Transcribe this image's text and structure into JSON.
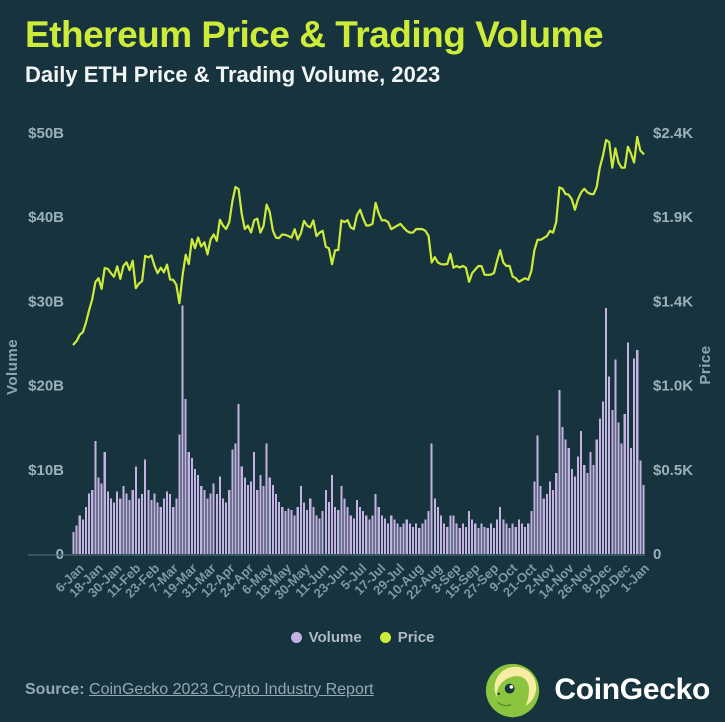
{
  "header": {
    "title": "Ethereum Price & Trading Volume",
    "subtitle": "Daily ETH Price & Trading Volume, 2023"
  },
  "colors": {
    "background": "#17343E",
    "accent": "#CDEC3A",
    "subtitle": "#F2F5F6",
    "price_line": "#CDEC3A",
    "volume_bar": "#C4B2E2",
    "axis_label": "#9CB0BA",
    "tick_label": "#7F98A6",
    "axis_title": "#8FA5B1",
    "legend_text": "#AEBAC0",
    "footer_text": "#93A8B2",
    "baseline": "#4E6A76",
    "logo_green": "#8BC53F",
    "logo_cream": "#F6ECA4",
    "logo_dark": "#17343E"
  },
  "chart_data": {
    "type": "bar",
    "title": "Ethereum Price & Trading Volume",
    "subtitle": "Daily ETH Price & Trading Volume, 2023",
    "grid": false,
    "legend_position": "bottom",
    "date_start": "1-Jan-2023",
    "date_end": "1-Jan-2024",
    "days_total": 365,
    "sampling": "values estimated from chart at ~2-day intervals",
    "x_tick_labels": [
      "6-Jan",
      "18-Jan",
      "30-Jan",
      "11-Feb",
      "23-Feb",
      "7-Mar",
      "19-Mar",
      "31-Mar",
      "12-Apr",
      "24-Apr",
      "6-May",
      "18-May",
      "30-May",
      "11-Jun",
      "23-Jun",
      "5-Jul",
      "17-Jul",
      "29-Jul",
      "10-Aug",
      "22-Aug",
      "3-Sep",
      "15-Sep",
      "27-Sep",
      "9-Oct",
      "21-Oct",
      "2-Nov",
      "14-Nov",
      "26-Nov",
      "8-Dec",
      "20-Dec",
      "1-Jan"
    ],
    "x_tick_days": [
      5,
      17,
      29,
      41,
      53,
      65,
      77,
      89,
      101,
      113,
      125,
      137,
      149,
      161,
      173,
      185,
      197,
      209,
      221,
      233,
      245,
      257,
      269,
      281,
      293,
      305,
      317,
      329,
      341,
      353,
      365
    ],
    "left_axis": {
      "title": "Volume",
      "tick_labels": [
        "$50B",
        "$40B",
        "$30B",
        "$20B",
        "$10B",
        "0"
      ],
      "tick_values_billion": [
        50,
        40,
        30,
        20,
        10,
        0
      ],
      "max_value_billion_usd": 50
    },
    "right_axis": {
      "title": "Price",
      "tick_labels": [
        "$2.4K",
        "$1.9K",
        "$1.4K",
        "$1.0K",
        "$0.5K",
        "0"
      ],
      "tick_values_usd": [
        2400,
        1920,
        1440,
        960,
        480,
        0
      ],
      "max_value_usd": 2400
    },
    "series": [
      {
        "name": "Volume",
        "type": "bar",
        "unit": "billion USD",
        "color": "#C4B2E2",
        "values": [
          2.6,
          3.4,
          4.6,
          4.1,
          5.6,
          7.2,
          7.6,
          13.4,
          9.1,
          8.4,
          12.1,
          7.4,
          6.6,
          6.1,
          7.4,
          6.6,
          8.1,
          7.2,
          6.4,
          7.6,
          10.4,
          6.6,
          7.1,
          11.2,
          7.6,
          6.4,
          7.2,
          6.1,
          5.6,
          6.6,
          7.4,
          7.1,
          5.6,
          6.6,
          14.2,
          29.5,
          18.4,
          12.1,
          11.4,
          10.1,
          9.4,
          8.1,
          7.6,
          6.6,
          7.2,
          8.4,
          7.1,
          9.2,
          6.6,
          6.1,
          7.6,
          12.4,
          13.1,
          17.8,
          10.4,
          9.1,
          8.2,
          8.6,
          12.1,
          7.6,
          9.4,
          8.1,
          13.1,
          9.1,
          8.2,
          7.1,
          6.2,
          5.6,
          5.1,
          5.4,
          5.2,
          4.6,
          5.6,
          8.1,
          6.1,
          5.2,
          6.6,
          5.6,
          4.6,
          4.2,
          5.1,
          7.6,
          6.2,
          9.4,
          5.6,
          5.2,
          8.1,
          6.6,
          5.6,
          4.6,
          4.2,
          6.4,
          5.6,
          5.1,
          4.6,
          4.1,
          4.6,
          7.1,
          5.6,
          4.6,
          4.2,
          3.6,
          4.6,
          4.1,
          3.6,
          3.2,
          3.6,
          4.1,
          3.6,
          3.2,
          3.6,
          3.1,
          3.6,
          4.1,
          5.1,
          13.1,
          6.6,
          5.6,
          4.6,
          3.6,
          3.2,
          4.6,
          4.6,
          3.6,
          3.1,
          3.6,
          3.2,
          5.1,
          4.1,
          3.6,
          3.1,
          3.6,
          3.2,
          3.1,
          3.6,
          3.1,
          4.1,
          5.6,
          4.1,
          3.6,
          3.1,
          3.6,
          3.2,
          4.1,
          3.6,
          3.2,
          3.6,
          5.1,
          8.6,
          14.1,
          8.1,
          6.6,
          7.1,
          8.6,
          7.6,
          9.6,
          19.5,
          15.1,
          13.6,
          12.6,
          10.1,
          9.2,
          11.6,
          14.6,
          10.6,
          9.6,
          12.1,
          10.6,
          13.6,
          16.1,
          18.1,
          29.2,
          21.1,
          17.1,
          23.1,
          15.6,
          13.1,
          16.6,
          25.1,
          12.6,
          23.2,
          24.2,
          11.1,
          8.2
        ]
      },
      {
        "name": "Price",
        "type": "line",
        "unit": "USD",
        "color": "#CDEC3A",
        "values": [
          1195,
          1215,
          1250,
          1265,
          1320,
          1390,
          1452,
          1550,
          1572,
          1512,
          1630,
          1625,
          1601,
          1581,
          1640,
          1568,
          1642,
          1663,
          1618,
          1672,
          1515,
          1542,
          1556,
          1700,
          1691,
          1702,
          1643,
          1601,
          1632,
          1606,
          1650,
          1565,
          1563,
          1535,
          1430,
          1590,
          1706,
          1653,
          1795,
          1743,
          1804,
          1753,
          1777,
          1708,
          1793,
          1822,
          1785,
          1906,
          1872,
          1853,
          1892,
          2012,
          2092,
          2080,
          1940,
          1853,
          1872,
          1833,
          1903,
          1912,
          1832,
          1870,
          1992,
          1950,
          1843,
          1803,
          1801,
          1822,
          1819,
          1813,
          1803,
          1851,
          1793,
          1829,
          1899,
          1872,
          1862,
          1902,
          1812,
          1832,
          1842,
          1752,
          1742,
          1652,
          1732,
          1733,
          1902,
          1892,
          1903,
          1862,
          1852,
          1932,
          1962,
          1912,
          1872,
          1873,
          1882,
          2002,
          1942,
          1902,
          1903,
          1892,
          1852,
          1862,
          1872,
          1882,
          1860,
          1842,
          1832,
          1833,
          1852,
          1853,
          1852,
          1842,
          1812,
          1662,
          1692,
          1662,
          1652,
          1651,
          1653,
          1712,
          1632,
          1642,
          1633,
          1642,
          1632,
          1552,
          1602,
          1622,
          1642,
          1641,
          1592,
          1591,
          1593,
          1602,
          1672,
          1732,
          1662,
          1642,
          1643,
          1582,
          1572,
          1552,
          1562,
          1572,
          1563,
          1612,
          1732,
          1792,
          1791,
          1802,
          1812,
          1842,
          1832,
          1892,
          2090,
          2082,
          2052,
          2048,
          2022,
          1962,
          2022,
          2062,
          2082,
          2062,
          2052,
          2051,
          2092,
          2202,
          2272,
          2360,
          2348,
          2202,
          2312,
          2232,
          2202,
          2203,
          2322,
          2282,
          2232,
          2378,
          2300,
          2282
        ]
      }
    ]
  },
  "legend": [
    {
      "label": "Volume",
      "color": "#C4B2E2"
    },
    {
      "label": "Price",
      "color": "#CDEC3A"
    }
  ],
  "footer": {
    "source_label": "Source:",
    "source_link": "CoinGecko 2023 Crypto Industry Report",
    "brand": "CoinGecko"
  }
}
